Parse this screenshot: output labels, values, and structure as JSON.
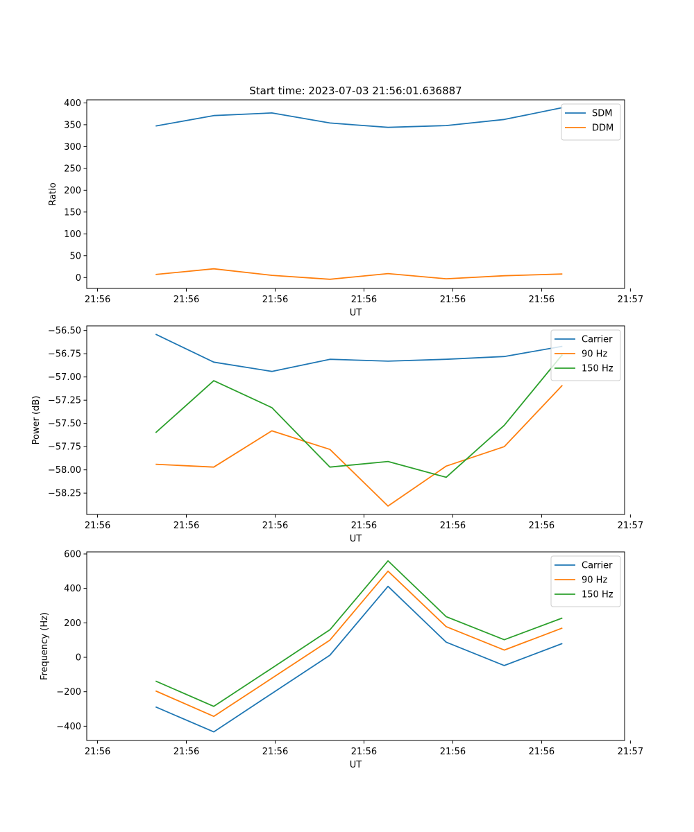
{
  "chart_data": [
    {
      "type": "line",
      "title": "Start time: 2023-07-03 21:56:01.636887",
      "xlabel": "UT",
      "ylabel": "Ratio",
      "x": [
        0.7,
        1.4,
        2.1,
        2.8,
        3.5,
        4.2,
        4.9,
        5.6
      ],
      "xlim": [
        -0.13,
        6.35
      ],
      "xticks": [
        0,
        1.07,
        2.14,
        3.21,
        4.28,
        5.35,
        6.42
      ],
      "xticklabels": [
        "21:56",
        "21:56",
        "21:56",
        "21:56",
        "21:56",
        "21:56",
        "21:57"
      ],
      "ylim": [
        -25,
        407
      ],
      "yticks": [
        0,
        50,
        100,
        150,
        200,
        250,
        300,
        350,
        400
      ],
      "yticklabels": [
        "0",
        "50",
        "100",
        "150",
        "200",
        "250",
        "300",
        "350",
        "400"
      ],
      "legend": "top-right",
      "series": [
        {
          "name": "SDM",
          "color": "#1f77b4",
          "values": [
            347,
            371,
            377,
            354,
            344,
            348,
            362,
            389
          ]
        },
        {
          "name": "DDM",
          "color": "#ff7f0e",
          "values": [
            7,
            20,
            5,
            -4,
            9,
            -3,
            4,
            8
          ]
        }
      ]
    },
    {
      "type": "line",
      "title": "",
      "xlabel": "UT",
      "ylabel": "Power (dB)",
      "x": [
        0.7,
        1.4,
        2.1,
        2.8,
        3.5,
        4.2,
        4.9,
        5.6
      ],
      "xlim": [
        -0.13,
        6.35
      ],
      "xticks": [
        0,
        1.07,
        2.14,
        3.21,
        4.28,
        5.35,
        6.42
      ],
      "xticklabels": [
        "21:56",
        "21:56",
        "21:56",
        "21:56",
        "21:56",
        "21:56",
        "21:57"
      ],
      "ylim": [
        -58.48,
        -56.45
      ],
      "yticks": [
        -58.25,
        -58.0,
        -57.75,
        -57.5,
        -57.25,
        -57.0,
        -56.75,
        -56.5
      ],
      "yticklabels": [
        "−58.25",
        "−58.00",
        "−57.75",
        "−57.50",
        "−57.25",
        "−57.00",
        "−56.75",
        "−56.50"
      ],
      "legend": "top-right",
      "series": [
        {
          "name": "Carrier",
          "color": "#1f77b4",
          "values": [
            -56.54,
            -56.84,
            -56.94,
            -56.81,
            -56.83,
            -56.81,
            -56.78,
            -56.67
          ]
        },
        {
          "name": "90 Hz",
          "color": "#ff7f0e",
          "values": [
            -57.94,
            -57.97,
            -57.58,
            -57.78,
            -58.39,
            -57.96,
            -57.75,
            -57.09
          ]
        },
        {
          "name": "150 Hz",
          "color": "#2ca02c",
          "values": [
            -57.6,
            -57.04,
            -57.33,
            -57.97,
            -57.91,
            -58.08,
            -57.52,
            -56.76
          ]
        }
      ]
    },
    {
      "type": "line",
      "title": "",
      "xlabel": "UT",
      "ylabel": "Frequency (Hz)",
      "x": [
        0.7,
        1.4,
        2.1,
        2.8,
        3.5,
        4.2,
        4.9,
        5.6
      ],
      "xlim": [
        -0.13,
        6.35
      ],
      "xticks": [
        0,
        1.07,
        2.14,
        3.21,
        4.28,
        5.35,
        6.42
      ],
      "xticklabels": [
        "21:56",
        "21:56",
        "21:56",
        "21:56",
        "21:56",
        "21:56",
        "21:57"
      ],
      "ylim": [
        -483,
        612
      ],
      "yticks": [
        -400,
        -200,
        0,
        200,
        400,
        600
      ],
      "yticklabels": [
        "−400",
        "−200",
        "0",
        "200",
        "400",
        "600"
      ],
      "legend": "top-right",
      "series": [
        {
          "name": "Carrier",
          "color": "#1f77b4",
          "values": [
            -288,
            -433,
            -210,
            12,
            412,
            88,
            -48,
            80
          ]
        },
        {
          "name": "90 Hz",
          "color": "#ff7f0e",
          "values": [
            -195,
            -343,
            -122,
            100,
            500,
            178,
            42,
            170
          ]
        },
        {
          "name": "150 Hz",
          "color": "#2ca02c",
          "values": [
            -138,
            -285,
            -63,
            160,
            560,
            236,
            102,
            228
          ]
        }
      ]
    }
  ]
}
